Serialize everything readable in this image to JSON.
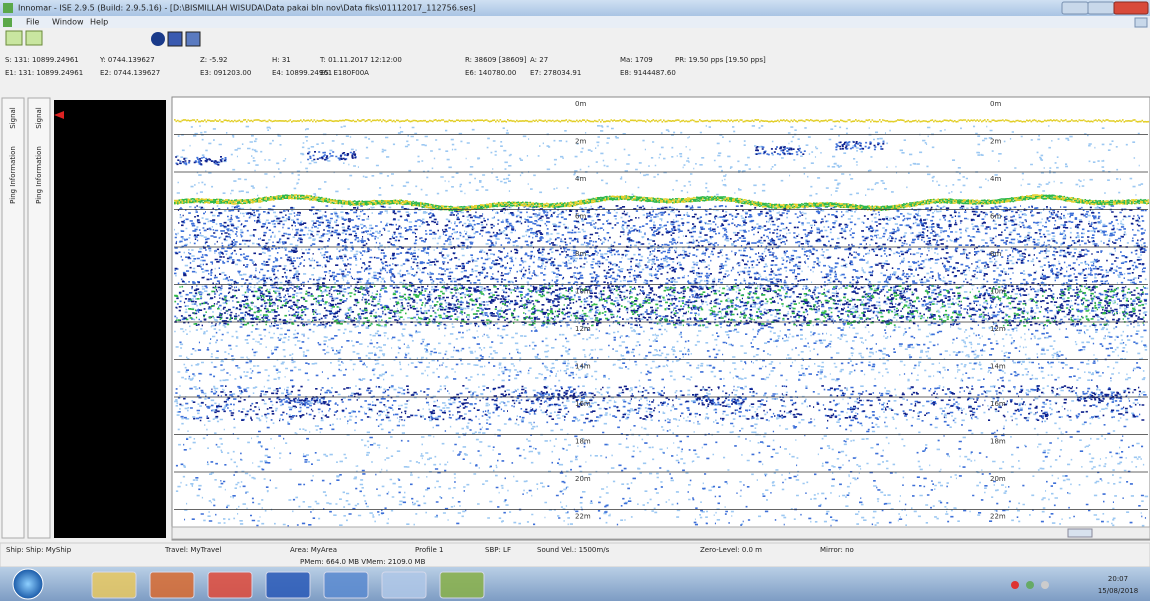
{
  "window": {
    "title": "Innomar - ISE 2.9.5 (Build: 2.9.5.16) - [D:\\BISMILLAH WISUDA\\Data pakai bln nov\\Data fiks\\01112017_112756.ses]"
  },
  "menu": [
    "File",
    "Window",
    "Help"
  ],
  "info": {
    "row1": [
      "S: 131: 10899.24961",
      "Y: 0744.139627",
      "Z: -5.92",
      "H: 31",
      "T: 01.11.2017 12:12:00",
      "R: 38609 [38609]",
      "A: 27",
      "Ma: 1709",
      "PR: 19.50 pps [19.50 pps]"
    ],
    "row2": [
      "E1: 131: 10899.24961",
      "E2: 0744.139627",
      "E3: 091203.00",
      "E4: 10899.24961",
      "E5: E180F00A",
      "E6: 140780.00",
      "E7: 278034.91",
      "E8: 9144487.60"
    ]
  },
  "side_tabs": [
    "Signal",
    "Ping Information"
  ],
  "depth_labels": [
    "0m",
    "2m",
    "4m",
    "6m",
    "8m",
    "10m",
    "12m",
    "14m",
    "16m",
    "18m",
    "20m",
    "22m"
  ],
  "status": [
    "Ship: Ship: MyShip",
    "Travel: MyTravel",
    "Area: MyArea",
    "Profile 1",
    "SBP: LF",
    "Sound Vel.: 1500m/s",
    "Zero-Level: 0.0 m",
    "Mirror: no"
  ],
  "memory": "PMem: 664.0 MB VMem: 2109.0 MB",
  "clock": {
    "time": "20:07",
    "date": "15/08/2018"
  }
}
